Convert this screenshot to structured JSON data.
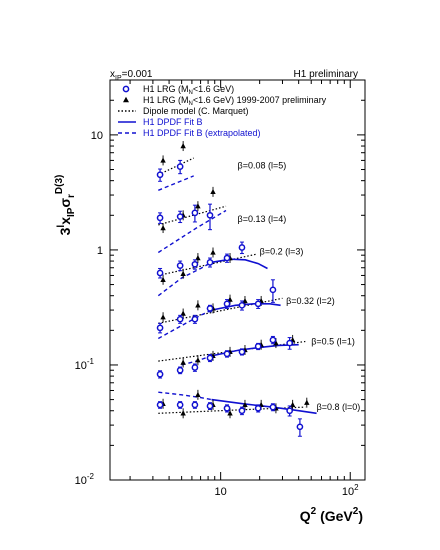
{
  "chart_data": {
    "type": "scatter",
    "x_scale": "log",
    "y_scale": "log",
    "xlim": [
      1.4,
      130
    ],
    "ylim": [
      0.01,
      30
    ],
    "xlabel_main": "Q",
    "xlabel_sup": "2",
    "xlabel_unit": " (GeV",
    "xlabel_unit_sup": "2",
    "xlabel_close": ")",
    "ylabel_a": "3",
    "ylabel_a_sup": "l",
    "ylabel_b": "x",
    "ylabel_b_sub": "IP",
    "ylabel_sigma": "σ",
    "ylabel_sigma_sub": "r",
    "ylabel_sigma_sup": "D(3)",
    "header_left": "x",
    "header_left_sub": "IP",
    "header_left_value": "=0.001",
    "header_right": "H1 preliminary",
    "x_ticks": [
      {
        "value": 10,
        "base": "10",
        "exp": ""
      },
      {
        "value": 100,
        "base": "10",
        "exp": "2"
      }
    ],
    "y_ticks": [
      {
        "value": 0.01,
        "base": "10",
        "exp": "-2"
      },
      {
        "value": 0.1,
        "base": "10",
        "exp": "-1"
      },
      {
        "value": 1,
        "base": "1",
        "exp": ""
      },
      {
        "value": 10,
        "base": "10",
        "exp": ""
      }
    ],
    "legend": [
      {
        "marker": "open-circle",
        "color": "#1010d0",
        "text_a": "H1 LRG  (M",
        "text_sub": "N",
        "text_b": "<1.6 GeV)"
      },
      {
        "marker": "triangle",
        "color": "#000000",
        "text_a": "H1 LRG  (M",
        "text_sub": "N",
        "text_b": "<1.6 GeV) 1999-2007 preliminary"
      },
      {
        "marker": "dotted",
        "color": "#000000",
        "text_a": "Dipole model (C. Marquet)",
        "text_sub": "",
        "text_b": ""
      },
      {
        "marker": "solid",
        "color": "#1010d0",
        "text_a": "H1 DPDF Fit B",
        "text_sub": "",
        "text_b": ""
      },
      {
        "marker": "dashed",
        "color": "#1010d0",
        "text_a": "H1 DPDF Fit B (extrapolated)",
        "text_sub": "",
        "text_b": ""
      }
    ],
    "groups": [
      {
        "label": "β=0.08 (l=5)",
        "label_at": [
          13.5,
          5.4
        ],
        "circles": [
          [
            3.5,
            4.5,
            0.55
          ],
          [
            5.0,
            5.3,
            0.7
          ]
        ],
        "triangles": [
          [
            3.5,
            6.0
          ],
          [
            5.0,
            8.0
          ]
        ],
        "dipole": [
          [
            3.3,
            4.5
          ],
          [
            6.2,
            6.3
          ]
        ],
        "fit_solid": [],
        "fit_dashed": [
          [
            3.3,
            3.3
          ],
          [
            6.2,
            4.4
          ]
        ]
      },
      {
        "label": "β=0.13 (l=4)",
        "label_at": [
          13.5,
          1.85
        ],
        "circles": [
          [
            3.5,
            1.9,
            0.2
          ],
          [
            5.0,
            1.95,
            0.22
          ],
          [
            6.5,
            2.1,
            0.35
          ],
          [
            8.5,
            2.0,
            0.5
          ]
        ],
        "triangles": [
          [
            3.5,
            1.55
          ],
          [
            5.0,
            2.0
          ],
          [
            6.5,
            2.4
          ],
          [
            8.5,
            3.2
          ]
        ],
        "dipole": [
          [
            3.3,
            1.65
          ],
          [
            11.0,
            2.4
          ]
        ],
        "fit_solid": [],
        "fit_dashed": [
          [
            3.3,
            0.95
          ],
          [
            6.5,
            1.55
          ],
          [
            11.0,
            2.2
          ]
        ]
      },
      {
        "label": "β=0.2 (l=3)",
        "label_at": [
          20.0,
          0.97
        ],
        "circles": [
          [
            3.5,
            0.63,
            0.06
          ],
          [
            5.0,
            0.73,
            0.07
          ],
          [
            6.5,
            0.75,
            0.07
          ],
          [
            8.5,
            0.78,
            0.07
          ],
          [
            11.5,
            0.85,
            0.07
          ],
          [
            15.0,
            1.05,
            0.12
          ]
        ],
        "triangles": [
          [
            3.5,
            0.55
          ],
          [
            5.0,
            0.62
          ],
          [
            6.5,
            0.85
          ],
          [
            8.5,
            0.95
          ],
          [
            11.5,
            0.85
          ]
        ],
        "dipole": [
          [
            3.3,
            0.6
          ],
          [
            19.0,
            0.92
          ]
        ],
        "fit_solid": [
          [
            8.5,
            0.78
          ],
          [
            12.0,
            0.83
          ],
          [
            15.5,
            0.82
          ],
          [
            19.5,
            0.76
          ],
          [
            23.0,
            0.69
          ]
        ],
        "fit_dashed": [
          [
            3.3,
            0.4
          ],
          [
            5.0,
            0.57
          ],
          [
            7.0,
            0.69
          ],
          [
            8.5,
            0.78
          ]
        ]
      },
      {
        "label": "β=0.32 (l=2)",
        "label_at": [
          32.0,
          0.36
        ],
        "circles": [
          [
            3.5,
            0.21,
            0.02
          ],
          [
            5.0,
            0.25,
            0.02
          ],
          [
            6.5,
            0.25,
            0.02
          ],
          [
            8.5,
            0.31,
            0.02
          ],
          [
            11.5,
            0.34,
            0.03
          ],
          [
            15.0,
            0.33,
            0.03
          ],
          [
            20.0,
            0.34,
            0.03
          ],
          [
            26.0,
            0.45,
            0.1
          ]
        ],
        "triangles": [
          [
            3.5,
            0.26
          ],
          [
            5.0,
            0.28
          ],
          [
            6.5,
            0.33
          ],
          [
            8.5,
            0.31
          ],
          [
            11.5,
            0.37
          ],
          [
            15.0,
            0.36
          ],
          [
            20.0,
            0.36
          ]
        ],
        "dipole": [
          [
            3.3,
            0.23
          ],
          [
            30.0,
            0.38
          ]
        ],
        "fit_solid": [
          [
            8.5,
            0.3
          ],
          [
            13.0,
            0.33
          ],
          [
            18.0,
            0.34
          ],
          [
            24.0,
            0.34
          ],
          [
            29.0,
            0.33
          ]
        ],
        "fit_dashed": [
          [
            3.3,
            0.17
          ],
          [
            5.0,
            0.22
          ],
          [
            7.0,
            0.27
          ],
          [
            8.5,
            0.3
          ]
        ]
      },
      {
        "label": "β=0.5 (l=1)",
        "label_at": [
          50.0,
          0.16
        ],
        "circles": [
          [
            3.5,
            0.083,
            0.006
          ],
          [
            5.0,
            0.09,
            0.006
          ],
          [
            6.5,
            0.095,
            0.007
          ],
          [
            8.5,
            0.115,
            0.008
          ],
          [
            11.5,
            0.125,
            0.008
          ],
          [
            15.0,
            0.13,
            0.008
          ],
          [
            20.0,
            0.145,
            0.009
          ],
          [
            26.0,
            0.165,
            0.012
          ],
          [
            35.0,
            0.155,
            0.018
          ]
        ],
        "triangles": [
          [
            5.0,
            0.105
          ],
          [
            6.5,
            0.11
          ],
          [
            8.5,
            0.12
          ],
          [
            11.5,
            0.13
          ],
          [
            15.0,
            0.135
          ],
          [
            20.0,
            0.15
          ],
          [
            26.0,
            0.155
          ],
          [
            35.0,
            0.165
          ]
        ],
        "dipole": [
          [
            3.3,
            0.108
          ],
          [
            45.0,
            0.16
          ]
        ],
        "fit_solid": [
          [
            8.5,
            0.12
          ],
          [
            14.0,
            0.135
          ],
          [
            20.0,
            0.142
          ],
          [
            28.0,
            0.148
          ],
          [
            40.0,
            0.15
          ]
        ],
        "fit_dashed": [
          [
            5.0,
            0.1
          ],
          [
            6.5,
            0.108
          ],
          [
            8.5,
            0.12
          ]
        ]
      },
      {
        "label": "β=0.8 (l=0)",
        "label_at": [
          55.0,
          0.043
        ],
        "circles": [
          [
            3.5,
            0.045,
            0.003
          ],
          [
            5.0,
            0.045,
            0.003
          ],
          [
            6.5,
            0.045,
            0.003
          ],
          [
            8.5,
            0.044,
            0.003
          ],
          [
            11.5,
            0.042,
            0.003
          ],
          [
            15.0,
            0.04,
            0.003
          ],
          [
            20.0,
            0.042,
            0.003
          ],
          [
            26.0,
            0.043,
            0.003
          ],
          [
            35.0,
            0.04,
            0.004
          ],
          [
            42.0,
            0.029,
            0.005
          ]
        ],
        "triangles": [
          [
            3.5,
            0.046
          ],
          [
            5.0,
            0.038
          ],
          [
            6.5,
            0.055
          ],
          [
            8.5,
            0.045
          ],
          [
            11.5,
            0.038
          ],
          [
            15.0,
            0.045
          ],
          [
            20.0,
            0.045
          ],
          [
            26.0,
            0.042
          ],
          [
            35.0,
            0.045
          ],
          [
            45.0,
            0.047
          ]
        ],
        "dipole": [
          [
            3.3,
            0.038
          ],
          [
            45.0,
            0.043
          ]
        ],
        "fit_solid": [
          [
            8.5,
            0.05
          ],
          [
            15.0,
            0.046
          ],
          [
            25.0,
            0.043
          ],
          [
            40.0,
            0.04
          ],
          [
            55.0,
            0.038
          ]
        ],
        "fit_dashed": [
          [
            3.3,
            0.058
          ],
          [
            5.0,
            0.055
          ],
          [
            7.0,
            0.052
          ],
          [
            8.5,
            0.05
          ]
        ]
      }
    ]
  }
}
